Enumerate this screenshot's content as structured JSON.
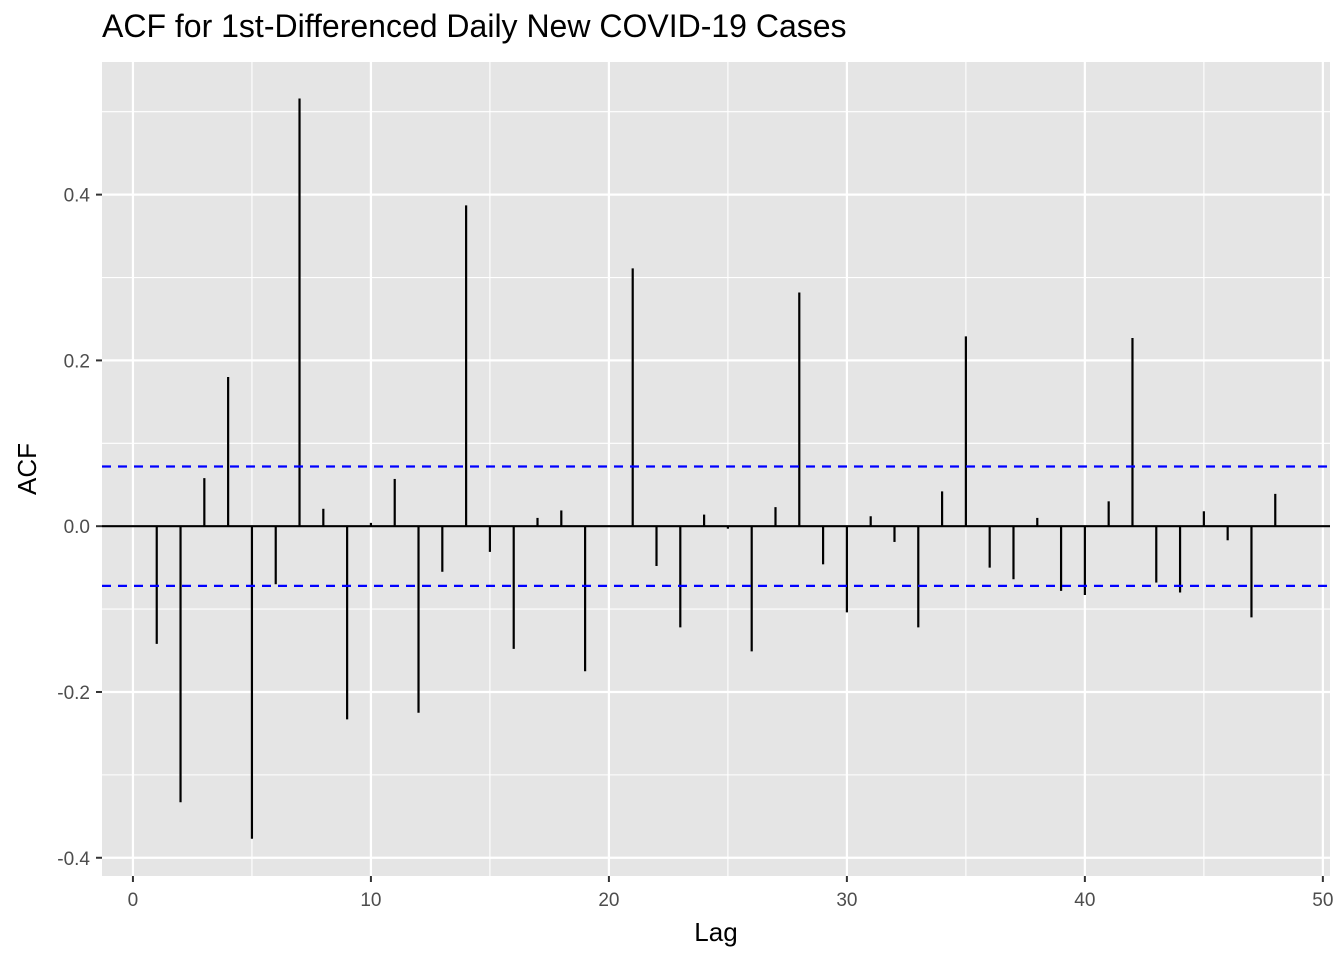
{
  "chart_data": {
    "type": "bar",
    "title": "ACF for 1st-Differenced Daily New COVID-19 Cases",
    "xlabel": "Lag",
    "ylabel": "ACF",
    "xlim": [
      -1.3,
      50.3
    ],
    "ylim": [
      -0.422,
      0.56
    ],
    "x_ticks": [
      0,
      10,
      20,
      30,
      40,
      50
    ],
    "x_tick_labels": [
      "0",
      "10",
      "20",
      "30",
      "40",
      "50"
    ],
    "y_ticks": [
      -0.4,
      -0.2,
      0.0,
      0.2,
      0.4
    ],
    "y_tick_labels": [
      "-0.4",
      "-0.2",
      "0.0",
      "0.2",
      "0.4"
    ],
    "grid": true,
    "confidence_bound": 0.072,
    "lags": [
      1,
      2,
      3,
      4,
      5,
      6,
      7,
      8,
      9,
      10,
      11,
      12,
      13,
      14,
      15,
      16,
      17,
      18,
      19,
      20,
      21,
      22,
      23,
      24,
      25,
      26,
      27,
      28,
      29,
      30,
      31,
      32,
      33,
      34,
      35,
      36,
      37,
      38,
      39,
      40,
      41,
      42,
      43,
      44,
      45,
      46,
      47,
      48
    ],
    "values": [
      -0.142,
      -0.333,
      0.058,
      0.18,
      -0.377,
      -0.07,
      0.516,
      0.021,
      -0.233,
      0.004,
      0.057,
      -0.225,
      -0.055,
      0.387,
      -0.031,
      -0.148,
      0.01,
      0.019,
      -0.175,
      0.0,
      0.311,
      -0.048,
      -0.122,
      0.014,
      -0.003,
      -0.151,
      0.023,
      0.282,
      -0.046,
      -0.104,
      0.012,
      -0.019,
      -0.122,
      0.042,
      0.229,
      -0.05,
      -0.064,
      0.01,
      -0.078,
      -0.083,
      0.03,
      0.227,
      -0.068,
      -0.08,
      0.018,
      -0.017,
      -0.11,
      0.039
    ]
  },
  "colors": {
    "panel_background": "#e5e5e5",
    "grid": "#ffffff",
    "bars": "#000000",
    "confidence_lines": "#0000ff",
    "tick_text": "#4d4d4d"
  }
}
